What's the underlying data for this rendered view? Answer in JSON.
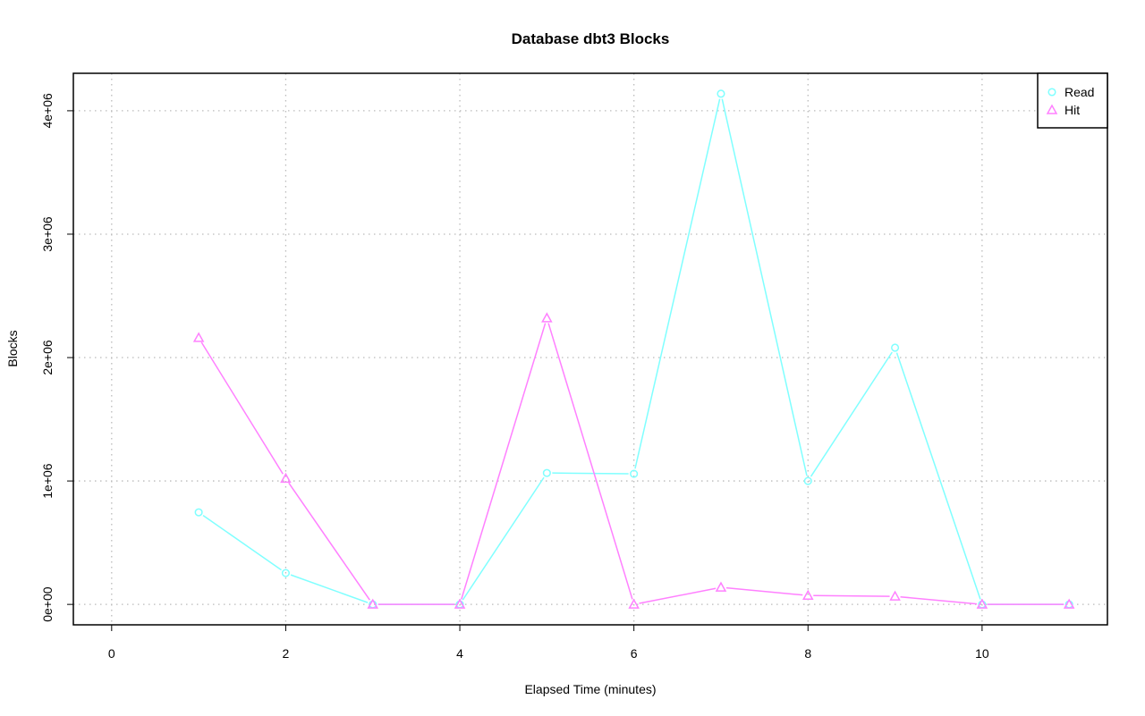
{
  "chart_data": {
    "type": "line",
    "title": "Database dbt3 Blocks",
    "xlabel": "Elapsed Time (minutes)",
    "ylabel": "Blocks",
    "xlim": [
      0,
      11
    ],
    "ylim": [
      0,
      4138000
    ],
    "x_ticks": [
      0,
      2,
      4,
      6,
      8,
      10
    ],
    "x_tick_labels": [
      "0",
      "2",
      "4",
      "6",
      "8",
      "10"
    ],
    "y_ticks": [
      0,
      1000000,
      2000000,
      3000000,
      4000000
    ],
    "y_tick_labels": [
      "0e+00",
      "1e+06",
      "2e+06",
      "3e+06",
      "4e+06"
    ],
    "grid": true,
    "legend_position": "top-right",
    "x": [
      1,
      2,
      3,
      4,
      5,
      6,
      7,
      8,
      9,
      10,
      11
    ],
    "series": [
      {
        "name": "Read",
        "color": "#80ffff",
        "marker": "circle",
        "values": [
          746000,
          254000,
          0,
          0,
          1065000,
          1058000,
          4138000,
          1000000,
          2080000,
          0,
          0
        ]
      },
      {
        "name": "Hit",
        "color": "#ff80ff",
        "marker": "triangle",
        "values": [
          2160000,
          1020000,
          0,
          0,
          2320000,
          0,
          138000,
          72000,
          65000,
          0,
          0
        ]
      }
    ]
  }
}
